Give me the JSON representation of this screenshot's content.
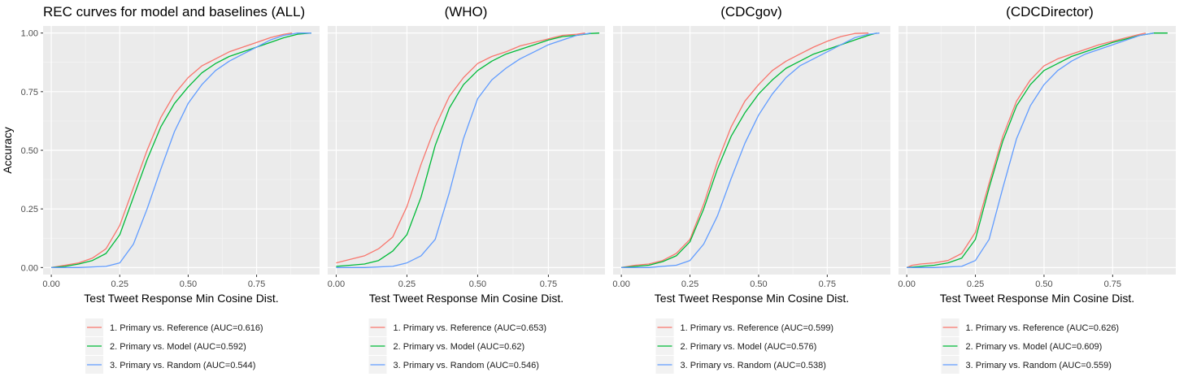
{
  "y_axis_label": "Accuracy",
  "chart_data": [
    {
      "type": "line",
      "title": "REC curves for model and baselines (ALL)",
      "xlabel": "Test Tweet Response Min Cosine Dist.",
      "ylabel": "Accuracy",
      "xlim": [
        -0.03,
        0.98
      ],
      "ylim": [
        -0.03,
        1.03
      ],
      "x_ticks": [
        0,
        0.25,
        0.5,
        0.75
      ],
      "x_tick_labels": [
        "0.00",
        "0.25",
        "0.50",
        "0.75"
      ],
      "y_ticks": [
        0,
        0.25,
        0.5,
        0.75,
        1
      ],
      "y_tick_labels": [
        "0.00",
        "0.25",
        "0.50",
        "0.75",
        "1.00"
      ],
      "grid": true,
      "legend_position": "bottom",
      "series": [
        {
          "name": "1. Primary vs. Reference (AUC=0.616)",
          "color": "#F8766D",
          "x": [
            0.0,
            0.05,
            0.1,
            0.15,
            0.2,
            0.25,
            0.3,
            0.35,
            0.4,
            0.45,
            0.5,
            0.55,
            0.6,
            0.65,
            0.7,
            0.75,
            0.8,
            0.85,
            0.88
          ],
          "y": [
            0.0,
            0.01,
            0.02,
            0.04,
            0.08,
            0.18,
            0.34,
            0.5,
            0.64,
            0.74,
            0.81,
            0.86,
            0.89,
            0.92,
            0.94,
            0.96,
            0.98,
            0.995,
            1.0
          ]
        },
        {
          "name": "2. Primary vs. Model (AUC=0.592)",
          "color": "#00BA38",
          "x": [
            0.0,
            0.05,
            0.1,
            0.15,
            0.2,
            0.25,
            0.3,
            0.35,
            0.4,
            0.45,
            0.5,
            0.55,
            0.6,
            0.65,
            0.7,
            0.75,
            0.8,
            0.85,
            0.9,
            0.95
          ],
          "y": [
            0.0,
            0.005,
            0.015,
            0.03,
            0.06,
            0.14,
            0.3,
            0.46,
            0.6,
            0.7,
            0.77,
            0.83,
            0.87,
            0.9,
            0.92,
            0.94,
            0.96,
            0.98,
            0.995,
            1.0
          ]
        },
        {
          "name": "3. Primary vs. Random (AUC=0.544)",
          "color": "#619CFF",
          "x": [
            0.0,
            0.1,
            0.2,
            0.25,
            0.3,
            0.35,
            0.4,
            0.45,
            0.5,
            0.55,
            0.6,
            0.65,
            0.7,
            0.75,
            0.8,
            0.85,
            0.9,
            0.95
          ],
          "y": [
            0.0,
            0.0,
            0.005,
            0.02,
            0.1,
            0.25,
            0.42,
            0.58,
            0.7,
            0.78,
            0.84,
            0.88,
            0.91,
            0.94,
            0.97,
            0.99,
            1.0,
            1.0
          ]
        }
      ]
    },
    {
      "type": "line",
      "title": "(WHO)",
      "xlabel": "Test Tweet Response Min Cosine Dist.",
      "xlim": [
        -0.03,
        0.95
      ],
      "ylim": [
        -0.03,
        1.03
      ],
      "x_ticks": [
        0,
        0.25,
        0.5,
        0.75
      ],
      "x_tick_labels": [
        "0.00",
        "0.25",
        "0.50",
        "0.75"
      ],
      "grid": true,
      "legend_position": "bottom",
      "series": [
        {
          "name": "1. Primary vs. Reference (AUC=0.653)",
          "color": "#F8766D",
          "x": [
            0.0,
            0.05,
            0.1,
            0.15,
            0.2,
            0.25,
            0.3,
            0.35,
            0.4,
            0.45,
            0.5,
            0.55,
            0.6,
            0.65,
            0.7,
            0.75,
            0.8,
            0.85,
            0.88
          ],
          "y": [
            0.02,
            0.035,
            0.05,
            0.08,
            0.13,
            0.26,
            0.44,
            0.6,
            0.73,
            0.81,
            0.87,
            0.9,
            0.92,
            0.945,
            0.96,
            0.975,
            0.99,
            0.995,
            1.0
          ]
        },
        {
          "name": "2. Primary vs. Model (AUC=0.62)",
          "color": "#00BA38",
          "x": [
            0.0,
            0.05,
            0.1,
            0.15,
            0.2,
            0.25,
            0.3,
            0.35,
            0.4,
            0.45,
            0.5,
            0.55,
            0.6,
            0.65,
            0.7,
            0.75,
            0.8,
            0.85,
            0.9,
            0.93
          ],
          "y": [
            0.005,
            0.01,
            0.015,
            0.03,
            0.07,
            0.14,
            0.3,
            0.52,
            0.68,
            0.78,
            0.84,
            0.88,
            0.91,
            0.93,
            0.95,
            0.97,
            0.985,
            0.99,
            0.998,
            1.0
          ]
        },
        {
          "name": "3. Primary vs. Random (AUC=0.546)",
          "color": "#619CFF",
          "x": [
            0.0,
            0.1,
            0.2,
            0.25,
            0.3,
            0.35,
            0.4,
            0.45,
            0.5,
            0.55,
            0.6,
            0.65,
            0.7,
            0.75,
            0.8,
            0.85,
            0.9
          ],
          "y": [
            0.0,
            0.0,
            0.005,
            0.02,
            0.05,
            0.12,
            0.32,
            0.55,
            0.72,
            0.8,
            0.85,
            0.89,
            0.92,
            0.95,
            0.97,
            0.99,
            1.0
          ]
        }
      ]
    },
    {
      "type": "line",
      "title": "(CDCgov)",
      "xlabel": "Test Tweet Response Min Cosine Dist.",
      "xlim": [
        -0.03,
        0.98
      ],
      "ylim": [
        -0.03,
        1.03
      ],
      "x_ticks": [
        0,
        0.25,
        0.5,
        0.75
      ],
      "x_tick_labels": [
        "0.00",
        "0.25",
        "0.50",
        "0.75"
      ],
      "grid": true,
      "legend_position": "bottom",
      "series": [
        {
          "name": "1. Primary vs. Reference (AUC=0.599)",
          "color": "#F8766D",
          "x": [
            0.0,
            0.05,
            0.1,
            0.15,
            0.2,
            0.25,
            0.3,
            0.35,
            0.4,
            0.45,
            0.5,
            0.55,
            0.6,
            0.65,
            0.7,
            0.75,
            0.8,
            0.85,
            0.9
          ],
          "y": [
            0.0,
            0.01,
            0.015,
            0.03,
            0.06,
            0.12,
            0.27,
            0.45,
            0.6,
            0.71,
            0.78,
            0.84,
            0.88,
            0.91,
            0.94,
            0.965,
            0.985,
            0.998,
            1.0
          ]
        },
        {
          "name": "2. Primary vs. Model (AUC=0.576)",
          "color": "#00BA38",
          "x": [
            0.0,
            0.05,
            0.1,
            0.15,
            0.2,
            0.25,
            0.3,
            0.35,
            0.4,
            0.45,
            0.5,
            0.55,
            0.6,
            0.65,
            0.7,
            0.75,
            0.8,
            0.85,
            0.9,
            0.93
          ],
          "y": [
            0.0,
            0.005,
            0.01,
            0.025,
            0.05,
            0.11,
            0.25,
            0.42,
            0.56,
            0.66,
            0.74,
            0.8,
            0.85,
            0.88,
            0.91,
            0.93,
            0.95,
            0.97,
            0.99,
            1.0
          ]
        },
        {
          "name": "3. Primary vs. Random (AUC=0.538)",
          "color": "#619CFF",
          "x": [
            0.0,
            0.1,
            0.2,
            0.25,
            0.3,
            0.35,
            0.4,
            0.45,
            0.5,
            0.55,
            0.6,
            0.65,
            0.7,
            0.75,
            0.8,
            0.85,
            0.9,
            0.94
          ],
          "y": [
            0.0,
            0.0,
            0.01,
            0.03,
            0.1,
            0.22,
            0.38,
            0.53,
            0.65,
            0.74,
            0.81,
            0.86,
            0.89,
            0.92,
            0.95,
            0.98,
            0.995,
            1.0
          ]
        }
      ]
    },
    {
      "type": "line",
      "title": "(CDCDirector)",
      "xlabel": "Test Tweet Response Min Cosine Dist.",
      "xlim": [
        -0.03,
        0.98
      ],
      "ylim": [
        -0.03,
        1.03
      ],
      "x_ticks": [
        0,
        0.25,
        0.5,
        0.75
      ],
      "x_tick_labels": [
        "0.00",
        "0.25",
        "0.50",
        "0.75"
      ],
      "grid": true,
      "legend_position": "bottom",
      "series": [
        {
          "name": "1. Primary vs. Reference (AUC=0.626)",
          "color": "#F8766D",
          "x": [
            0.0,
            0.02,
            0.05,
            0.1,
            0.15,
            0.2,
            0.25,
            0.3,
            0.35,
            0.4,
            0.45,
            0.5,
            0.55,
            0.6,
            0.65,
            0.7,
            0.75,
            0.8,
            0.85,
            0.87
          ],
          "y": [
            0.0,
            0.01,
            0.015,
            0.02,
            0.03,
            0.06,
            0.15,
            0.36,
            0.56,
            0.71,
            0.8,
            0.86,
            0.89,
            0.91,
            0.93,
            0.95,
            0.965,
            0.98,
            0.995,
            1.0
          ]
        },
        {
          "name": "2. Primary vs. Model (AUC=0.609)",
          "color": "#00BA38",
          "x": [
            0.0,
            0.05,
            0.1,
            0.15,
            0.2,
            0.25,
            0.3,
            0.35,
            0.4,
            0.45,
            0.5,
            0.55,
            0.6,
            0.65,
            0.7,
            0.75,
            0.8,
            0.85,
            0.9,
            0.95
          ],
          "y": [
            0.0,
            0.005,
            0.01,
            0.02,
            0.04,
            0.12,
            0.34,
            0.54,
            0.69,
            0.78,
            0.84,
            0.87,
            0.9,
            0.92,
            0.94,
            0.96,
            0.975,
            0.99,
            1.0,
            1.0
          ]
        },
        {
          "name": "3. Primary vs. Random (AUC=0.559)",
          "color": "#619CFF",
          "x": [
            0.0,
            0.1,
            0.2,
            0.25,
            0.3,
            0.35,
            0.4,
            0.45,
            0.5,
            0.55,
            0.6,
            0.65,
            0.7,
            0.75,
            0.8,
            0.85,
            0.9
          ],
          "y": [
            0.0,
            0.0,
            0.005,
            0.03,
            0.12,
            0.34,
            0.55,
            0.69,
            0.78,
            0.84,
            0.88,
            0.91,
            0.93,
            0.95,
            0.97,
            0.99,
            1.0
          ]
        }
      ]
    }
  ]
}
